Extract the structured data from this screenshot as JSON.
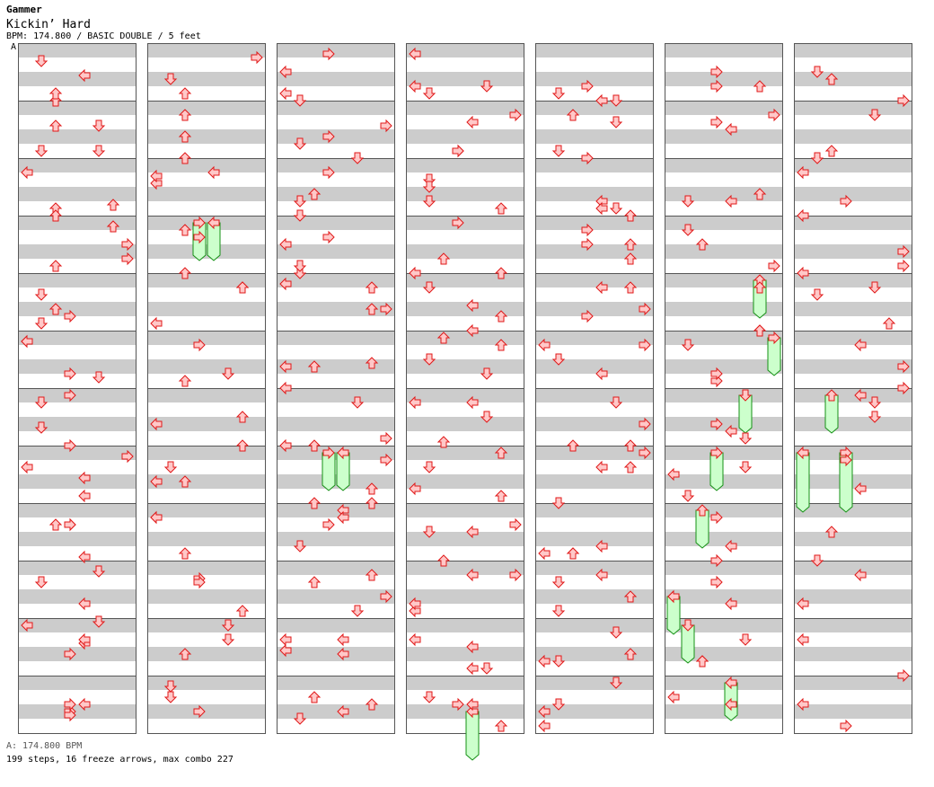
{
  "header": {
    "brand": "Gammer",
    "song_title": "Kickin’ Hard",
    "info": "BPM: 174.800 / BASIC DOUBLE / 5 feet"
  },
  "bpm_marker": {
    "label": "A"
  },
  "footer": {
    "bpm_line": "A: 174.800 BPM",
    "stats_line": "199 steps, 16 freeze arrows, max combo 227"
  },
  "colors": {
    "stripe": "#cccccc",
    "border": "#555555",
    "arrow_fill": "#ffc8c8",
    "arrow_stroke": "#e01818",
    "freeze_fill": "#ccffcc",
    "freeze_stroke": "#169016"
  },
  "chart_data": {
    "type": "step-chart",
    "mode": "BASIC DOUBLE",
    "bpm": 174.8,
    "lanes": [
      "P1-left",
      "P1-down",
      "P1-up",
      "P1-right",
      "P2-left",
      "P2-down",
      "P2-up",
      "P2-right"
    ],
    "columns": 7,
    "measures_per_column": 12,
    "arrows": [
      [
        0,
        1,
        7,
        4
      ],
      [
        0,
        1,
        5,
        5
      ],
      [
        0,
        1,
        11,
        6
      ],
      [
        0,
        1,
        1,
        6
      ],
      [
        0,
        1,
        4,
        1
      ],
      [
        0,
        1,
        11,
        5
      ],
      [
        0,
        1,
        0,
        3
      ],
      [
        0,
        1,
        1,
        7
      ],
      [
        0,
        1,
        4,
        3
      ],
      [
        0,
        1,
        1,
        5
      ],
      [
        0,
        1,
        0,
        0
      ],
      [
        0,
        1,
        6,
        4
      ],
      [
        0,
        0,
        14,
        2
      ],
      [
        0,
        0,
        5,
        2
      ],
      [
        0,
        0,
        12,
        2
      ],
      [
        0,
        0,
        10,
        7
      ],
      [
        0,
        0,
        12,
        1
      ],
      [
        0,
        0,
        1,
        0
      ],
      [
        0,
        0,
        9,
        1
      ],
      [
        0,
        1,
        7,
        4
      ],
      [
        0,
        1,
        13,
        4
      ],
      [
        0,
        1,
        15,
        5
      ],
      [
        0,
        0,
        5,
        4
      ],
      [
        0,
        0,
        8,
        3
      ],
      [
        0,
        1,
        3,
        1
      ],
      [
        0,
        2,
        12,
        1
      ],
      [
        0,
        0,
        2,
        0
      ],
      [
        0,
        3,
        12,
        2
      ],
      [
        0,
        2,
        10,
        3
      ],
      [
        0,
        0,
        1,
        0
      ],
      [
        0,
        2,
        2,
        1
      ],
      [
        0,
        1,
        4,
        0
      ],
      [
        0,
        1,
        4,
        3
      ],
      [
        0,
        1,
        10,
        4
      ],
      [
        0,
        1,
        4,
        4
      ],
      [
        0,
        0,
        6,
        3
      ],
      [
        0,
        2,
        12,
        2
      ],
      [
        0,
        3,
        12,
        5
      ],
      [
        0,
        2,
        14,
        2
      ],
      [
        0,
        2,
        6,
        7
      ],
      [
        0,
        3,
        8,
        2
      ],
      [
        0,
        3,
        10,
        3
      ],
      [
        0,
        2,
        14,
        3
      ],
      [
        0,
        1,
        12,
        4
      ],
      [
        0,
        1,
        4,
        2
      ],
      [
        0,
        1,
        4,
        1
      ],
      [
        0,
        1,
        8,
        3
      ],
      [
        0,
        0,
        9,
        3
      ],
      [
        1,
        0,
        2,
        7
      ],
      [
        1,
        2,
        2,
        2
      ],
      [
        1,
        0,
        5,
        0
      ],
      [
        1,
        3,
        14,
        2
      ],
      [
        1,
        2,
        12,
        0
      ],
      [
        1,
        0,
        12,
        2
      ],
      [
        1,
        0,
        8,
        0
      ],
      [
        1,
        2,
        8,
        2
      ],
      [
        1,
        3,
        12,
        2
      ],
      [
        1,
        1,
        12,
        6
      ],
      [
        1,
        3,
        0,
        5
      ],
      [
        1,
        0,
        8,
        3
      ],
      [
        1,
        0,
        12,
        2
      ],
      [
        1,
        0,
        8,
        2
      ],
      [
        1,
        0,
        3,
        0
      ],
      [
        1,
        1,
        2,
        2
      ],
      [
        1,
        3,
        2,
        6
      ],
      [
        1,
        2,
        2,
        3
      ],
      [
        1,
        2,
        14,
        6
      ],
      [
        1,
        1,
        8,
        0
      ],
      [
        1,
        2,
        2,
        0
      ],
      [
        1,
        0,
        3,
        3
      ],
      [
        1,
        0,
        8,
        2
      ],
      [
        1,
        0,
        1,
        1
      ],
      [
        1,
        0,
        8,
        1
      ],
      [
        1,
        0,
        14,
        2
      ],
      [
        1,
        1,
        2,
        4
      ],
      [
        1,
        2,
        4,
        3
      ],
      [
        1,
        3,
        2,
        6
      ],
      [
        1,
        2,
        10,
        5
      ],
      [
        1,
        1,
        6,
        6
      ],
      [
        1,
        3,
        4,
        1
      ],
      [
        1,
        3,
        2,
        0
      ],
      [
        1,
        2,
        4,
        3
      ],
      [
        1,
        0,
        4,
        5
      ],
      [
        1,
        2,
        4,
        1
      ],
      [
        2,
        0,
        12,
        0
      ],
      [
        2,
        3,
        10,
        1
      ],
      [
        2,
        2,
        2,
        3
      ],
      [
        2,
        2,
        14,
        1
      ],
      [
        2,
        2,
        1,
        0
      ],
      [
        2,
        0,
        14,
        0
      ],
      [
        2,
        3,
        12,
        7
      ],
      [
        2,
        3,
        14,
        2
      ],
      [
        2,
        0,
        0,
        4
      ],
      [
        2,
        2,
        8,
        7
      ],
      [
        2,
        3,
        4,
        4
      ],
      [
        2,
        3,
        10,
        1
      ],
      [
        2,
        0,
        6,
        0
      ],
      [
        2,
        0,
        14,
        5
      ],
      [
        2,
        3,
        10,
        1
      ],
      [
        2,
        0,
        6,
        0
      ],
      [
        2,
        3,
        8,
        6
      ],
      [
        2,
        1,
        7,
        6
      ],
      [
        2,
        1,
        14,
        0
      ],
      [
        2,
        3,
        10,
        6
      ],
      [
        2,
        1,
        2,
        4
      ],
      [
        2,
        2,
        2,
        6
      ],
      [
        2,
        3,
        8,
        4
      ],
      [
        2,
        1,
        4,
        2
      ],
      [
        2,
        0,
        1,
        3
      ],
      [
        2,
        0,
        5,
        7
      ],
      [
        2,
        3,
        8,
        2
      ],
      [
        2,
        0,
        4,
        3
      ],
      [
        2,
        0,
        8,
        7
      ],
      [
        2,
        1,
        8,
        0
      ],
      [
        2,
        1,
        14,
        2
      ],
      [
        2,
        1,
        2,
        7
      ],
      [
        2,
        0,
        10,
        1
      ],
      [
        2,
        0,
        12,
        5
      ],
      [
        2,
        1,
        4,
        0
      ],
      [
        2,
        1,
        8,
        4
      ],
      [
        2,
        2,
        14,
        1
      ],
      [
        2,
        1,
        8,
        3
      ],
      [
        2,
        0,
        14,
        1
      ],
      [
        2,
        1,
        12,
        1
      ],
      [
        2,
        1,
        2,
        6
      ],
      [
        2,
        2,
        8,
        2
      ],
      [
        2,
        3,
        2,
        5
      ],
      [
        2,
        2,
        14,
        6
      ],
      [
        2,
        3,
        4,
        3
      ],
      [
        2,
        1,
        4,
        2
      ],
      [
        2,
        1,
        7,
        0
      ],
      [
        2,
        1,
        6,
        6
      ],
      [
        3,
        1,
        1,
        0
      ],
      [
        3,
        0,
        4,
        4
      ],
      [
        3,
        1,
        4,
        1
      ],
      [
        3,
        1,
        0,
        3
      ],
      [
        3,
        0,
        7,
        4
      ],
      [
        3,
        0,
        2,
        6
      ],
      [
        3,
        2,
        13,
        2
      ],
      [
        3,
        0,
        4,
        1
      ],
      [
        3,
        1,
        4,
        7
      ],
      [
        3,
        2,
        12,
        0
      ],
      [
        3,
        0,
        12,
        5
      ],
      [
        3,
        0,
        12,
        6
      ],
      [
        3,
        0,
        10,
        5
      ],
      [
        3,
        3,
        12,
        3
      ],
      [
        3,
        0,
        10,
        1
      ],
      [
        3,
        0,
        14,
        0
      ],
      [
        3,
        2,
        14,
        4
      ],
      [
        3,
        3,
        0,
        2
      ],
      [
        3,
        0,
        6,
        5
      ],
      [
        3,
        1,
        0,
        6
      ],
      [
        3,
        0,
        6,
        4
      ],
      [
        3,
        2,
        2,
        7
      ],
      [
        3,
        1,
        4,
        0
      ],
      [
        3,
        2,
        6,
        4
      ],
      [
        3,
        2,
        10,
        0
      ],
      [
        3,
        3,
        12,
        3
      ],
      [
        3,
        2,
        12,
        6
      ],
      [
        3,
        0,
        10,
        2
      ],
      [
        3,
        0,
        2,
        1
      ],
      [
        3,
        1,
        10,
        5
      ],
      [
        3,
        0,
        2,
        4
      ],
      [
        3,
        0,
        12,
        6
      ],
      [
        3,
        0,
        14,
        2
      ],
      [
        3,
        0,
        10,
        0
      ],
      [
        3,
        0,
        6,
        4
      ],
      [
        3,
        0,
        4,
        1
      ],
      [
        3,
        3,
        12,
        1
      ],
      [
        3,
        2,
        2,
        7
      ],
      [
        3,
        0,
        6,
        1
      ],
      [
        3,
        2,
        14,
        6
      ],
      [
        3,
        2,
        10,
        6
      ],
      [
        3,
        0,
        6,
        1
      ],
      [
        3,
        2,
        2,
        0
      ],
      [
        3,
        2,
        10,
        0
      ],
      [
        3,
        1,
        6,
        1
      ],
      [
        3,
        3,
        2,
        4
      ],
      [
        3,
        2,
        12,
        4
      ],
      [
        3,
        0,
        6,
        3
      ],
      [
        4,
        1,
        10,
        3
      ],
      [
        4,
        1,
        2,
        2
      ],
      [
        4,
        1,
        10,
        4
      ],
      [
        4,
        3,
        2,
        3
      ],
      [
        4,
        1,
        8,
        7
      ],
      [
        4,
        0,
        2,
        7
      ],
      [
        4,
        1,
        2,
        5
      ],
      [
        4,
        1,
        14,
        1
      ],
      [
        4,
        3,
        12,
        2
      ],
      [
        4,
        0,
        4,
        1
      ],
      [
        4,
        0,
        2,
        5
      ],
      [
        4,
        2,
        6,
        1
      ],
      [
        4,
        2,
        14,
        5
      ],
      [
        4,
        1,
        14,
        3
      ],
      [
        4,
        0,
        12,
        4
      ],
      [
        4,
        1,
        6,
        6
      ],
      [
        4,
        1,
        2,
        6
      ],
      [
        4,
        0,
        6,
        1
      ],
      [
        4,
        1,
        8,
        7
      ],
      [
        4,
        1,
        4,
        4
      ],
      [
        4,
        3,
        12,
        2
      ],
      [
        4,
        3,
        12,
        1
      ],
      [
        4,
        3,
        8,
        6
      ],
      [
        4,
        0,
        0,
        5
      ],
      [
        4,
        1,
        12,
        1
      ],
      [
        4,
        2,
        4,
        5
      ],
      [
        4,
        1,
        12,
        5
      ],
      [
        4,
        1,
        10,
        6
      ],
      [
        4,
        0,
        10,
        3
      ],
      [
        4,
        0,
        10,
        4
      ],
      [
        4,
        0,
        14,
        6
      ],
      [
        4,
        0,
        4,
        6
      ],
      [
        4,
        1,
        12,
        0
      ],
      [
        4,
        1,
        2,
        4
      ],
      [
        4,
        0,
        10,
        1
      ],
      [
        4,
        1,
        8,
        0
      ],
      [
        4,
        1,
        14,
        4
      ],
      [
        4,
        2,
        12,
        1
      ],
      [
        4,
        1,
        14,
        6
      ],
      [
        4,
        2,
        6,
        3
      ],
      [
        4,
        2,
        2,
        4
      ],
      [
        4,
        1,
        2,
        0
      ],
      [
        4,
        1,
        14,
        2
      ],
      [
        4,
        0,
        0,
        7
      ],
      [
        4,
        0,
        10,
        4
      ],
      [
        4,
        0,
        8,
        6
      ],
      [
        4,
        3,
        10,
        0
      ],
      [
        4,
        0,
        12,
        0
      ],
      [
        5,
        1,
        10,
        6
      ],
      [
        5,
        0,
        6,
        4
      ],
      [
        5,
        0,
        10,
        4
      ],
      [
        5,
        0,
        2,
        1
      ],
      [
        5,
        0,
        14,
        6
      ],
      [
        5,
        2,
        2,
        1
      ],
      [
        5,
        1,
        8,
        3
      ],
      [
        5,
        1,
        4,
        5
      ],
      [
        5,
        1,
        2,
        3
      ],
      [
        5,
        2,
        4,
        3
      ],
      [
        5,
        3,
        10,
        2
      ],
      [
        5,
        2,
        6,
        4
      ],
      [
        5,
        2,
        6,
        3
      ],
      [
        5,
        2,
        2,
        7
      ],
      [
        5,
        2,
        8,
        6
      ],
      [
        5,
        0,
        12,
        7
      ],
      [
        5,
        3,
        14,
        6
      ],
      [
        5,
        0,
        12,
        3
      ],
      [
        5,
        1,
        12,
        5
      ],
      [
        5,
        1,
        12,
        1
      ],
      [
        5,
        1,
        14,
        3
      ],
      [
        5,
        0,
        8,
        0
      ],
      [
        5,
        1,
        4,
        5
      ],
      [
        5,
        0,
        4,
        0
      ],
      [
        5,
        3,
        10,
        3
      ],
      [
        5,
        0,
        4,
        3
      ],
      [
        5,
        2,
        10,
        1
      ],
      [
        5,
        3,
        6,
        2
      ],
      [
        5,
        0,
        2,
        6
      ],
      [
        5,
        2,
        10,
        3
      ],
      [
        5,
        1,
        10,
        4
      ],
      [
        5,
        3,
        6,
        0
      ],
      [
        5,
        2,
        10,
        4
      ],
      [
        5,
        0,
        10,
        4
      ],
      [
        5,
        1,
        10,
        2
      ],
      [
        5,
        1,
        14,
        0
      ],
      [
        6,
        0,
        8,
        2
      ],
      [
        6,
        0,
        12,
        2
      ],
      [
        6,
        1,
        10,
        3
      ],
      [
        6,
        2,
        14,
        0
      ],
      [
        6,
        3,
        2,
        5
      ],
      [
        6,
        3,
        8,
        7
      ],
      [
        6,
        1,
        2,
        5
      ],
      [
        6,
        2,
        2,
        3
      ],
      [
        6,
        2,
        14,
        1
      ],
      [
        6,
        2,
        10,
        0
      ],
      [
        6,
        0,
        14,
        7
      ],
      [
        6,
        0,
        12,
        3
      ],
      [
        6,
        1,
        14,
        7
      ],
      [
        6,
        1,
        14,
        1
      ],
      [
        6,
        3,
        14,
        0
      ],
      [
        6,
        0,
        8,
        7
      ],
      [
        6,
        1,
        4,
        1
      ],
      [
        6,
        2,
        2,
        4
      ],
      [
        6,
        0,
        6,
        5
      ],
      [
        6,
        1,
        10,
        4
      ],
      [
        6,
        2,
        6,
        2
      ],
      [
        6,
        1,
        2,
        4
      ],
      [
        6,
        0,
        4,
        0
      ],
      [
        6,
        3,
        6,
        0
      ],
      [
        6,
        2,
        6,
        1
      ],
      [
        6,
        1,
        2,
        5
      ],
      [
        6,
        3,
        2,
        0
      ],
      [
        6,
        0,
        12,
        7
      ],
      [
        6,
        1,
        12,
        6
      ],
      [
        6,
        3,
        14,
        7
      ],
      [
        6,
        0,
        0,
        4
      ]
    ],
    "freezes": [
      [
        1,
        3,
        0,
        3,
        6,
        4
      ],
      [
        1,
        3,
        0,
        4,
        6,
        4
      ],
      [
        2,
        7,
        0,
        3,
        6,
        4
      ],
      [
        2,
        7,
        0,
        4,
        6,
        4
      ],
      [
        3,
        11,
        8,
        4,
        8,
        4
      ],
      [
        5,
        4,
        0,
        6,
        6,
        4
      ],
      [
        5,
        5,
        0,
        7,
        6,
        4
      ],
      [
        5,
        6,
        0,
        5,
        6,
        4
      ],
      [
        5,
        7,
        0,
        3,
        6,
        4
      ],
      [
        5,
        8,
        0,
        2,
        6,
        4
      ],
      [
        5,
        9,
        8,
        0,
        6,
        4
      ],
      [
        5,
        10,
        0,
        1,
        6,
        4
      ],
      [
        5,
        11,
        0,
        4,
        6,
        4
      ],
      [
        6,
        6,
        0,
        2,
        6,
        4
      ],
      [
        6,
        7,
        0,
        0,
        10,
        4
      ],
      [
        6,
        7,
        0,
        3,
        10,
        4
      ]
    ]
  }
}
